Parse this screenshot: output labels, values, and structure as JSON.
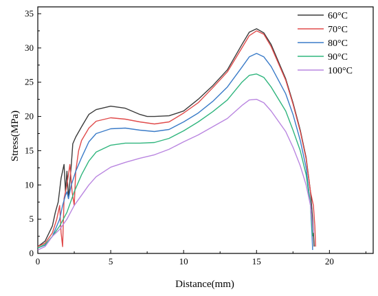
{
  "chart_data": {
    "type": "line",
    "title": "",
    "xlabel": "Distance(mm)",
    "ylabel": "Stress(MPa)",
    "xlim": [
      0,
      23
    ],
    "ylim": [
      0,
      36
    ],
    "xticks": [
      0,
      5,
      10,
      15,
      20
    ],
    "yticks": [
      0,
      5,
      10,
      15,
      20,
      25,
      30,
      35
    ],
    "grid": false,
    "legend_position": "top-right",
    "series": [
      {
        "name": "60°C",
        "color": "#3a3a3a",
        "points": [
          [
            0,
            1
          ],
          [
            0.5,
            1.8
          ],
          [
            1,
            4
          ],
          [
            1.2,
            6
          ],
          [
            1.4,
            7.5
          ],
          [
            1.6,
            11
          ],
          [
            1.8,
            13
          ],
          [
            1.9,
            9
          ],
          [
            2.0,
            12
          ],
          [
            2.1,
            8
          ],
          [
            2.3,
            13
          ],
          [
            2.4,
            16
          ],
          [
            2.6,
            17
          ],
          [
            3,
            18.5
          ],
          [
            3.5,
            20.3
          ],
          [
            4,
            21
          ],
          [
            5,
            21.5
          ],
          [
            6,
            21.2
          ],
          [
            7,
            20.3
          ],
          [
            7.5,
            20
          ],
          [
            8,
            20
          ],
          [
            9,
            20.1
          ],
          [
            10,
            20.8
          ],
          [
            11,
            22.5
          ],
          [
            12,
            24.5
          ],
          [
            13,
            26.8
          ],
          [
            14,
            30.5
          ],
          [
            14.5,
            32.3
          ],
          [
            15,
            32.8
          ],
          [
            15.5,
            32.2
          ],
          [
            16,
            30.5
          ],
          [
            17,
            25.5
          ],
          [
            17.5,
            22
          ],
          [
            18,
            18
          ],
          [
            18.4,
            14
          ],
          [
            18.7,
            9
          ],
          [
            18.85,
            5
          ],
          [
            18.9,
            3
          ],
          [
            18.95,
            1
          ]
        ]
      },
      {
        "name": "70°C",
        "color": "#e04a4a",
        "points": [
          [
            0,
            1
          ],
          [
            0.5,
            1.5
          ],
          [
            1,
            3
          ],
          [
            1.3,
            5
          ],
          [
            1.5,
            7
          ],
          [
            1.6,
            3
          ],
          [
            1.7,
            1
          ],
          [
            1.8,
            8
          ],
          [
            2.0,
            10
          ],
          [
            2.2,
            13
          ],
          [
            2.35,
            9
          ],
          [
            2.5,
            7
          ],
          [
            2.6,
            12
          ],
          [
            2.8,
            15
          ],
          [
            3,
            16.5
          ],
          [
            3.5,
            18.3
          ],
          [
            4,
            19.3
          ],
          [
            5,
            19.8
          ],
          [
            6,
            19.6
          ],
          [
            7,
            19.2
          ],
          [
            8,
            18.9
          ],
          [
            9,
            19.2
          ],
          [
            10,
            20.5
          ],
          [
            11,
            22
          ],
          [
            12,
            24.2
          ],
          [
            13,
            26.5
          ],
          [
            14,
            30
          ],
          [
            14.5,
            31.8
          ],
          [
            15,
            32.5
          ],
          [
            15.5,
            32
          ],
          [
            16,
            30.2
          ],
          [
            17,
            25.3
          ],
          [
            17.5,
            21.8
          ],
          [
            18,
            17.8
          ],
          [
            18.4,
            13.8
          ],
          [
            18.7,
            9
          ],
          [
            18.9,
            7
          ],
          [
            19.0,
            4
          ],
          [
            19.05,
            1
          ]
        ]
      },
      {
        "name": "80°C",
        "color": "#3a7bc8",
        "points": [
          [
            0,
            0.8
          ],
          [
            0.5,
            1.2
          ],
          [
            1,
            2.5
          ],
          [
            1.3,
            4
          ],
          [
            1.5,
            5
          ],
          [
            1.7,
            7
          ],
          [
            1.9,
            8.5
          ],
          [
            2.0,
            9
          ],
          [
            2.1,
            8
          ],
          [
            2.3,
            10
          ],
          [
            2.6,
            12
          ],
          [
            3,
            14
          ],
          [
            3.5,
            16.3
          ],
          [
            4,
            17.5
          ],
          [
            5,
            18.2
          ],
          [
            6,
            18.3
          ],
          [
            7,
            18
          ],
          [
            8,
            17.8
          ],
          [
            9,
            18.1
          ],
          [
            10,
            19.2
          ],
          [
            11,
            20.5
          ],
          [
            12,
            22.2
          ],
          [
            13,
            24.3
          ],
          [
            14,
            27.2
          ],
          [
            14.5,
            28.7
          ],
          [
            15,
            29.2
          ],
          [
            15.5,
            28.7
          ],
          [
            16,
            27.3
          ],
          [
            17,
            23.3
          ],
          [
            17.5,
            20.3
          ],
          [
            18,
            16.5
          ],
          [
            18.4,
            12.5
          ],
          [
            18.7,
            7
          ],
          [
            18.8,
            3
          ],
          [
            18.85,
            0.5
          ]
        ]
      },
      {
        "name": "90°C",
        "color": "#2fb57d",
        "points": [
          [
            0,
            0.8
          ],
          [
            0.5,
            1.3
          ],
          [
            1,
            2.5
          ],
          [
            1.5,
            4
          ],
          [
            2,
            6
          ],
          [
            2.5,
            9
          ],
          [
            3,
            11.5
          ],
          [
            3.5,
            13.5
          ],
          [
            4,
            14.8
          ],
          [
            5,
            15.8
          ],
          [
            6,
            16.1
          ],
          [
            7,
            16.1
          ],
          [
            8,
            16.2
          ],
          [
            9,
            16.8
          ],
          [
            10,
            17.9
          ],
          [
            11,
            19.2
          ],
          [
            12,
            20.7
          ],
          [
            13,
            22.4
          ],
          [
            14,
            25
          ],
          [
            14.5,
            26
          ],
          [
            15,
            26.2
          ],
          [
            15.5,
            25.7
          ],
          [
            16,
            24.3
          ],
          [
            17,
            20.8
          ],
          [
            17.5,
            18
          ],
          [
            18,
            15
          ],
          [
            18.4,
            11.5
          ],
          [
            18.7,
            7
          ],
          [
            18.8,
            4
          ],
          [
            18.85,
            2.5
          ]
        ]
      },
      {
        "name": "100°C",
        "color": "#b985e0",
        "points": [
          [
            0,
            0.5
          ],
          [
            0.5,
            1
          ],
          [
            1,
            2.5
          ],
          [
            1.5,
            3.5
          ],
          [
            2,
            5
          ],
          [
            2.5,
            7
          ],
          [
            3,
            8.5
          ],
          [
            3.5,
            10
          ],
          [
            4,
            11.2
          ],
          [
            5,
            12.6
          ],
          [
            6,
            13.3
          ],
          [
            7,
            13.9
          ],
          [
            8,
            14.4
          ],
          [
            9,
            15.2
          ],
          [
            10,
            16.3
          ],
          [
            11,
            17.3
          ],
          [
            12,
            18.5
          ],
          [
            13,
            19.7
          ],
          [
            14,
            21.6
          ],
          [
            14.5,
            22.4
          ],
          [
            15,
            22.5
          ],
          [
            15.5,
            22
          ],
          [
            16,
            20.8
          ],
          [
            17,
            17.8
          ],
          [
            17.5,
            15.5
          ],
          [
            18,
            12.8
          ],
          [
            18.4,
            10
          ],
          [
            18.7,
            7
          ],
          [
            18.85,
            4
          ],
          [
            18.9,
            3
          ]
        ]
      }
    ]
  }
}
